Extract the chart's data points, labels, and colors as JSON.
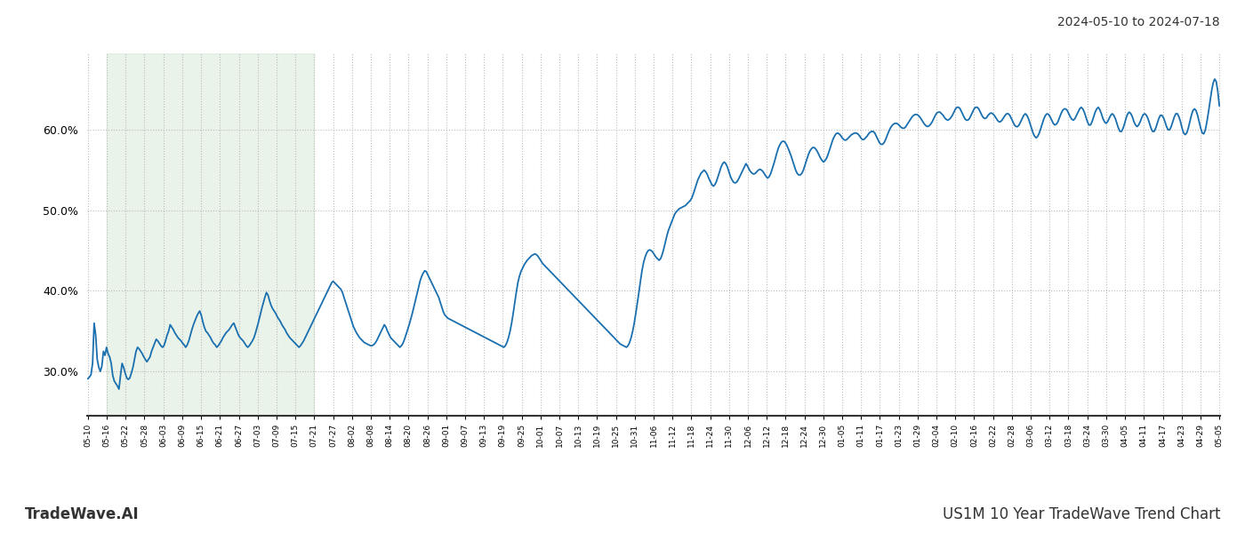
{
  "title_top_right": "2024-05-10 to 2024-07-18",
  "title_bottom_left": "TradeWave.AI",
  "title_bottom_right": "US1M 10 Year TradeWave Trend Chart",
  "background_color": "#ffffff",
  "line_color": "#1a6faf",
  "line_width": 1.3,
  "shading_color": "#d8ead8",
  "shading_alpha": 0.55,
  "ylim": [
    0.245,
    0.695
  ],
  "yticks": [
    0.3,
    0.4,
    0.5,
    0.6
  ],
  "grid_color": "#bbbbbb",
  "grid_style": ":",
  "x_labels": [
    "05-10",
    "05-16",
    "05-22",
    "05-28",
    "06-03",
    "06-09",
    "06-15",
    "06-21",
    "06-27",
    "07-03",
    "07-09",
    "07-15",
    "07-21",
    "07-27",
    "08-02",
    "08-08",
    "08-14",
    "08-20",
    "08-26",
    "09-01",
    "09-07",
    "09-13",
    "09-19",
    "09-25",
    "10-01",
    "10-07",
    "10-13",
    "10-19",
    "10-25",
    "10-31",
    "11-06",
    "11-12",
    "11-18",
    "11-24",
    "11-30",
    "12-06",
    "12-12",
    "12-18",
    "12-24",
    "12-30",
    "01-05",
    "01-11",
    "01-17",
    "01-23",
    "01-29",
    "02-04",
    "02-10",
    "02-16",
    "02-22",
    "02-28",
    "03-06",
    "03-12",
    "03-18",
    "03-24",
    "03-30",
    "04-05",
    "04-11",
    "04-17",
    "04-23",
    "04-29",
    "05-05"
  ],
  "shade_start_label": "05-16",
  "shade_end_label": "07-21",
  "values": [
    0.291,
    0.293,
    0.296,
    0.31,
    0.36,
    0.345,
    0.315,
    0.305,
    0.3,
    0.307,
    0.325,
    0.32,
    0.33,
    0.322,
    0.318,
    0.31,
    0.295,
    0.288,
    0.285,
    0.282,
    0.278,
    0.295,
    0.31,
    0.305,
    0.298,
    0.292,
    0.29,
    0.292,
    0.298,
    0.305,
    0.315,
    0.325,
    0.33,
    0.328,
    0.325,
    0.322,
    0.318,
    0.315,
    0.312,
    0.315,
    0.318,
    0.325,
    0.33,
    0.335,
    0.34,
    0.338,
    0.335,
    0.332,
    0.33,
    0.332,
    0.338,
    0.345,
    0.35,
    0.358,
    0.355,
    0.352,
    0.348,
    0.345,
    0.342,
    0.34,
    0.338,
    0.335,
    0.333,
    0.33,
    0.333,
    0.338,
    0.345,
    0.352,
    0.358,
    0.363,
    0.368,
    0.372,
    0.375,
    0.37,
    0.362,
    0.355,
    0.35,
    0.348,
    0.345,
    0.342,
    0.338,
    0.335,
    0.333,
    0.33,
    0.332,
    0.335,
    0.338,
    0.342,
    0.345,
    0.348,
    0.35,
    0.352,
    0.355,
    0.358,
    0.36,
    0.355,
    0.35,
    0.345,
    0.342,
    0.34,
    0.338,
    0.335,
    0.332,
    0.33,
    0.332,
    0.335,
    0.338,
    0.342,
    0.348,
    0.355,
    0.362,
    0.37,
    0.378,
    0.385,
    0.392,
    0.398,
    0.395,
    0.388,
    0.382,
    0.378,
    0.375,
    0.372,
    0.368,
    0.365,
    0.362,
    0.358,
    0.355,
    0.352,
    0.348,
    0.345,
    0.342,
    0.34,
    0.338,
    0.336,
    0.334,
    0.332,
    0.33,
    0.332,
    0.335,
    0.338,
    0.342,
    0.346,
    0.35,
    0.354,
    0.358,
    0.362,
    0.366,
    0.37,
    0.374,
    0.378,
    0.382,
    0.386,
    0.39,
    0.394,
    0.398,
    0.402,
    0.406,
    0.41,
    0.412,
    0.41,
    0.408,
    0.406,
    0.404,
    0.402,
    0.398,
    0.392,
    0.386,
    0.38,
    0.374,
    0.368,
    0.362,
    0.356,
    0.352,
    0.348,
    0.345,
    0.342,
    0.34,
    0.338,
    0.336,
    0.335,
    0.334,
    0.333,
    0.332,
    0.332,
    0.333,
    0.335,
    0.338,
    0.342,
    0.346,
    0.35,
    0.354,
    0.358,
    0.355,
    0.35,
    0.346,
    0.342,
    0.34,
    0.338,
    0.336,
    0.334,
    0.332,
    0.33,
    0.332,
    0.335,
    0.34,
    0.346,
    0.352,
    0.358,
    0.365,
    0.372,
    0.38,
    0.388,
    0.396,
    0.404,
    0.412,
    0.418,
    0.422,
    0.425,
    0.424,
    0.42,
    0.416,
    0.412,
    0.408,
    0.404,
    0.4,
    0.396,
    0.392,
    0.386,
    0.38,
    0.374,
    0.37,
    0.368,
    0.366,
    0.365,
    0.364,
    0.363,
    0.362,
    0.361,
    0.36,
    0.359,
    0.358,
    0.357,
    0.356,
    0.355,
    0.354,
    0.353,
    0.352,
    0.351,
    0.35,
    0.349,
    0.348,
    0.347,
    0.346,
    0.345,
    0.344,
    0.343,
    0.342,
    0.341,
    0.34,
    0.339,
    0.338,
    0.337,
    0.336,
    0.335,
    0.334,
    0.333,
    0.332,
    0.331,
    0.33,
    0.332,
    0.336,
    0.342,
    0.35,
    0.36,
    0.372,
    0.385,
    0.398,
    0.41,
    0.418,
    0.424,
    0.428,
    0.432,
    0.435,
    0.438,
    0.44,
    0.442,
    0.444,
    0.445,
    0.446,
    0.445,
    0.443,
    0.44,
    0.437,
    0.434,
    0.432,
    0.43,
    0.428,
    0.426,
    0.424,
    0.422,
    0.42,
    0.418,
    0.416,
    0.414,
    0.412,
    0.41,
    0.408,
    0.406,
    0.404,
    0.402,
    0.4,
    0.398,
    0.396,
    0.394,
    0.392,
    0.39,
    0.388,
    0.386,
    0.384,
    0.382,
    0.38,
    0.378,
    0.376,
    0.374,
    0.372,
    0.37,
    0.368,
    0.366,
    0.364,
    0.362,
    0.36,
    0.358,
    0.356,
    0.354,
    0.352,
    0.35,
    0.348,
    0.346,
    0.344,
    0.342,
    0.34,
    0.338,
    0.336,
    0.334,
    0.333,
    0.332,
    0.331,
    0.33,
    0.332,
    0.336,
    0.342,
    0.35,
    0.36,
    0.372,
    0.385,
    0.398,
    0.412,
    0.425,
    0.435,
    0.442,
    0.447,
    0.45,
    0.451,
    0.45,
    0.448,
    0.445,
    0.442,
    0.44,
    0.438,
    0.44,
    0.445,
    0.452,
    0.46,
    0.468,
    0.475,
    0.48,
    0.485,
    0.49,
    0.495,
    0.498,
    0.5,
    0.502,
    0.503,
    0.504,
    0.505,
    0.506,
    0.508,
    0.51,
    0.512,
    0.515,
    0.52,
    0.526,
    0.532,
    0.538,
    0.542,
    0.546,
    0.548,
    0.55,
    0.548,
    0.545,
    0.54,
    0.536,
    0.532,
    0.53,
    0.532,
    0.536,
    0.542,
    0.548,
    0.554,
    0.558,
    0.56,
    0.558,
    0.554,
    0.548,
    0.542,
    0.538,
    0.535,
    0.534,
    0.535,
    0.538,
    0.542,
    0.546,
    0.55,
    0.554,
    0.558,
    0.555,
    0.551,
    0.548,
    0.546,
    0.545,
    0.546,
    0.548,
    0.55,
    0.551,
    0.55,
    0.548,
    0.545,
    0.542,
    0.54,
    0.542,
    0.546,
    0.552,
    0.558,
    0.565,
    0.572,
    0.578,
    0.582,
    0.585,
    0.586,
    0.585,
    0.582,
    0.578,
    0.573,
    0.568,
    0.562,
    0.556,
    0.55,
    0.546,
    0.544,
    0.544,
    0.546,
    0.55,
    0.556,
    0.562,
    0.568,
    0.573,
    0.576,
    0.578,
    0.578,
    0.576,
    0.573,
    0.569,
    0.565,
    0.562,
    0.56,
    0.562,
    0.565,
    0.57,
    0.576,
    0.582,
    0.588,
    0.592,
    0.595,
    0.596,
    0.595,
    0.593,
    0.59,
    0.588,
    0.587,
    0.588,
    0.59,
    0.592,
    0.594,
    0.595,
    0.596,
    0.596,
    0.595,
    0.593,
    0.59,
    0.588,
    0.588,
    0.59,
    0.592,
    0.595,
    0.597,
    0.598,
    0.598,
    0.596,
    0.592,
    0.588,
    0.584,
    0.582,
    0.582,
    0.584,
    0.588,
    0.593,
    0.598,
    0.602,
    0.605,
    0.607,
    0.608,
    0.608,
    0.607,
    0.605,
    0.603,
    0.602,
    0.602,
    0.604,
    0.607,
    0.61,
    0.613,
    0.616,
    0.618,
    0.619,
    0.619,
    0.618,
    0.616,
    0.613,
    0.61,
    0.607,
    0.605,
    0.604,
    0.605,
    0.607,
    0.61,
    0.614,
    0.618,
    0.621,
    0.622,
    0.622,
    0.62,
    0.618,
    0.615,
    0.613,
    0.612,
    0.613,
    0.615,
    0.618,
    0.622,
    0.626,
    0.628,
    0.628,
    0.626,
    0.622,
    0.618,
    0.614,
    0.612,
    0.612,
    0.614,
    0.618,
    0.622,
    0.626,
    0.628,
    0.628,
    0.626,
    0.622,
    0.618,
    0.615,
    0.614,
    0.615,
    0.618,
    0.62,
    0.621,
    0.62,
    0.618,
    0.615,
    0.612,
    0.61,
    0.61,
    0.612,
    0.615,
    0.618,
    0.62,
    0.62,
    0.618,
    0.614,
    0.61,
    0.606,
    0.604,
    0.604,
    0.606,
    0.61,
    0.614,
    0.618,
    0.62,
    0.618,
    0.614,
    0.608,
    0.602,
    0.596,
    0.592,
    0.59,
    0.592,
    0.596,
    0.602,
    0.608,
    0.614,
    0.618,
    0.62,
    0.619,
    0.616,
    0.612,
    0.608,
    0.606,
    0.607,
    0.61,
    0.615,
    0.62,
    0.624,
    0.626,
    0.626,
    0.624,
    0.62,
    0.616,
    0.613,
    0.612,
    0.614,
    0.618,
    0.622,
    0.626,
    0.628,
    0.626,
    0.622,
    0.616,
    0.61,
    0.606,
    0.606,
    0.61,
    0.616,
    0.622,
    0.626,
    0.628,
    0.625,
    0.62,
    0.614,
    0.61,
    0.608,
    0.61,
    0.614,
    0.618,
    0.62,
    0.618,
    0.614,
    0.608,
    0.602,
    0.598,
    0.598,
    0.602,
    0.608,
    0.615,
    0.62,
    0.622,
    0.62,
    0.616,
    0.61,
    0.606,
    0.604,
    0.606,
    0.61,
    0.615,
    0.619,
    0.62,
    0.618,
    0.614,
    0.608,
    0.602,
    0.598,
    0.598,
    0.602,
    0.608,
    0.614,
    0.618,
    0.618,
    0.615,
    0.61,
    0.604,
    0.6,
    0.6,
    0.604,
    0.61,
    0.616,
    0.62,
    0.62,
    0.616,
    0.61,
    0.602,
    0.596,
    0.594,
    0.596,
    0.602,
    0.61,
    0.618,
    0.624,
    0.626,
    0.624,
    0.618,
    0.61,
    0.602,
    0.596,
    0.595,
    0.6,
    0.61,
    0.622,
    0.635,
    0.648,
    0.658,
    0.663,
    0.66,
    0.648,
    0.63
  ]
}
